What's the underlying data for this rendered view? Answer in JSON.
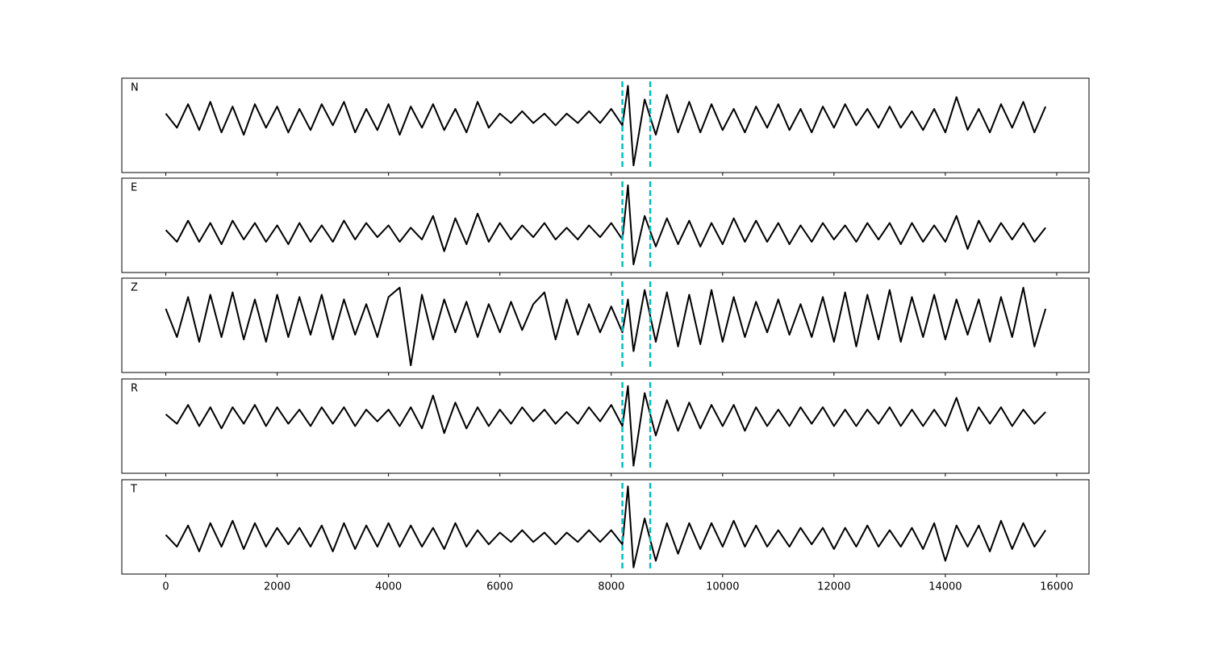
{
  "chart_data": [
    {
      "type": "line",
      "label": "N",
      "color": "#000000",
      "vlines": [
        8200,
        8700
      ],
      "vline_color": "#00bfbf",
      "xlim": [
        -790,
        16580
      ],
      "ylim": [
        -1.15,
        0.85
      ],
      "x": [
        0,
        200,
        400,
        600,
        800,
        1000,
        1200,
        1400,
        1600,
        1800,
        2000,
        2200,
        2400,
        2600,
        2800,
        3000,
        3200,
        3400,
        3600,
        3800,
        4000,
        4200,
        4400,
        4600,
        4800,
        5000,
        5200,
        5400,
        5600,
        5800,
        6000,
        6200,
        6400,
        6600,
        6800,
        7000,
        7200,
        7400,
        7600,
        7800,
        8000,
        8200,
        8300,
        8400,
        8600,
        8800,
        9000,
        9200,
        9400,
        9600,
        9800,
        10000,
        10200,
        10400,
        10600,
        10800,
        11000,
        11200,
        11400,
        11600,
        11800,
        12000,
        12200,
        12400,
        12600,
        12800,
        13000,
        13200,
        13400,
        13600,
        13800,
        14000,
        14200,
        14400,
        14600,
        14800,
        15000,
        15200,
        15400,
        15600,
        15800
      ],
      "values": [
        0.1,
        -0.2,
        0.3,
        -0.25,
        0.35,
        -0.3,
        0.25,
        -0.35,
        0.3,
        -0.2,
        0.25,
        -0.3,
        0.2,
        -0.25,
        0.3,
        -0.15,
        0.35,
        -0.3,
        0.2,
        -0.25,
        0.3,
        -0.35,
        0.25,
        -0.2,
        0.3,
        -0.25,
        0.2,
        -0.3,
        0.35,
        -0.2,
        0.1,
        -0.1,
        0.15,
        -0.1,
        0.1,
        -0.15,
        0.1,
        -0.1,
        0.15,
        -0.1,
        0.2,
        -0.15,
        0.69,
        -1.0,
        0.4,
        -0.35,
        0.5,
        -0.3,
        0.35,
        -0.3,
        0.3,
        -0.25,
        0.2,
        -0.3,
        0.25,
        -0.2,
        0.3,
        -0.25,
        0.2,
        -0.3,
        0.25,
        -0.2,
        0.3,
        -0.15,
        0.2,
        -0.2,
        0.25,
        -0.2,
        0.15,
        -0.25,
        0.2,
        -0.3,
        0.45,
        -0.25,
        0.2,
        -0.3,
        0.3,
        -0.2,
        0.35,
        -0.3,
        0.25
      ]
    },
    {
      "type": "line",
      "label": "E",
      "color": "#000000",
      "vlines": [
        8200,
        8700
      ],
      "vline_color": "#00bfbf",
      "xlim": [
        -790,
        16580
      ],
      "ylim": [
        -0.85,
        1.15
      ],
      "x": [
        0,
        200,
        400,
        600,
        800,
        1000,
        1200,
        1400,
        1600,
        1800,
        2000,
        2200,
        2400,
        2600,
        2800,
        3000,
        3200,
        3400,
        3600,
        3800,
        4000,
        4200,
        4400,
        4600,
        4800,
        5000,
        5200,
        5400,
        5600,
        5800,
        6000,
        6200,
        6400,
        6600,
        6800,
        7000,
        7200,
        7400,
        7600,
        7800,
        8000,
        8200,
        8300,
        8400,
        8600,
        8800,
        9000,
        9200,
        9400,
        9600,
        9800,
        10000,
        10200,
        10400,
        10600,
        10800,
        11000,
        11200,
        11400,
        11600,
        11800,
        12000,
        12200,
        12400,
        12600,
        12800,
        13000,
        13200,
        13400,
        13600,
        13800,
        14000,
        14200,
        14400,
        14600,
        14800,
        15000,
        15200,
        15400,
        15600,
        15800
      ],
      "values": [
        0.05,
        -0.2,
        0.25,
        -0.2,
        0.2,
        -0.25,
        0.25,
        -0.15,
        0.2,
        -0.2,
        0.15,
        -0.25,
        0.2,
        -0.2,
        0.15,
        -0.2,
        0.25,
        -0.15,
        0.2,
        -0.1,
        0.15,
        -0.2,
        0.1,
        -0.15,
        0.35,
        -0.4,
        0.3,
        -0.25,
        0.4,
        -0.2,
        0.2,
        -0.15,
        0.15,
        -0.1,
        0.2,
        -0.15,
        0.1,
        -0.15,
        0.15,
        -0.1,
        0.2,
        -0.15,
        1.0,
        -0.68,
        0.35,
        -0.3,
        0.3,
        -0.25,
        0.25,
        -0.3,
        0.2,
        -0.25,
        0.3,
        -0.2,
        0.25,
        -0.2,
        0.2,
        -0.25,
        0.15,
        -0.2,
        0.2,
        -0.15,
        0.15,
        -0.2,
        0.2,
        -0.15,
        0.2,
        -0.25,
        0.2,
        -0.2,
        0.15,
        -0.2,
        0.35,
        -0.35,
        0.25,
        -0.2,
        0.2,
        -0.15,
        0.2,
        -0.2,
        0.1
      ]
    },
    {
      "type": "line",
      "label": "Z",
      "color": "#000000",
      "vlines": [
        8200,
        8700
      ],
      "vline_color": "#00bfbf",
      "xlim": [
        -790,
        16580
      ],
      "ylim": [
        -1.15,
        0.85
      ],
      "x": [
        0,
        200,
        400,
        600,
        800,
        1000,
        1200,
        1400,
        1600,
        1800,
        2000,
        2200,
        2400,
        2600,
        2800,
        3000,
        3200,
        3400,
        3600,
        3800,
        4000,
        4200,
        4400,
        4600,
        4800,
        5000,
        5200,
        5400,
        5600,
        5800,
        6000,
        6200,
        6400,
        6600,
        6800,
        7000,
        7200,
        7400,
        7600,
        7800,
        8000,
        8200,
        8300,
        8400,
        8600,
        8800,
        9000,
        9200,
        9400,
        9600,
        9800,
        10000,
        10200,
        10400,
        10600,
        10800,
        11000,
        11200,
        11400,
        11600,
        11800,
        12000,
        12200,
        12400,
        12600,
        12800,
        13000,
        13200,
        13400,
        13600,
        13800,
        14000,
        14200,
        14400,
        14600,
        14800,
        15000,
        15200,
        15400,
        15600,
        15800
      ],
      "values": [
        0.2,
        -0.4,
        0.45,
        -0.5,
        0.5,
        -0.4,
        0.55,
        -0.45,
        0.4,
        -0.5,
        0.5,
        -0.4,
        0.45,
        -0.35,
        0.5,
        -0.45,
        0.4,
        -0.35,
        0.3,
        -0.4,
        0.45,
        0.65,
        -1.0,
        0.5,
        -0.45,
        0.4,
        -0.3,
        0.35,
        -0.4,
        0.3,
        -0.3,
        0.35,
        -0.25,
        0.3,
        0.55,
        -0.45,
        0.4,
        -0.35,
        0.3,
        -0.3,
        0.25,
        -0.3,
        0.4,
        -0.7,
        0.6,
        -0.5,
        0.55,
        -0.6,
        0.5,
        -0.55,
        0.6,
        -0.5,
        0.45,
        -0.4,
        0.35,
        -0.3,
        0.4,
        -0.35,
        0.3,
        -0.4,
        0.45,
        -0.5,
        0.55,
        -0.6,
        0.5,
        -0.45,
        0.6,
        -0.5,
        0.45,
        -0.4,
        0.5,
        -0.45,
        0.4,
        -0.35,
        0.4,
        -0.5,
        0.45,
        -0.4,
        0.65,
        -0.6,
        0.2
      ]
    },
    {
      "type": "line",
      "label": "R",
      "color": "#000000",
      "vlines": [
        8200,
        8700
      ],
      "vline_color": "#00bfbf",
      "xlim": [
        -790,
        16580
      ],
      "ylim": [
        -1.2,
        0.8
      ],
      "x": [
        0,
        200,
        400,
        600,
        800,
        1000,
        1200,
        1400,
        1600,
        1800,
        2000,
        2200,
        2400,
        2600,
        2800,
        3000,
        3200,
        3400,
        3600,
        3800,
        4000,
        4200,
        4400,
        4600,
        4800,
        5000,
        5200,
        5400,
        5600,
        5800,
        6000,
        6200,
        6400,
        6600,
        6800,
        7000,
        7200,
        7400,
        7600,
        7800,
        8000,
        8200,
        8300,
        8400,
        8600,
        8800,
        9000,
        9200,
        9400,
        9600,
        9800,
        10000,
        10200,
        10400,
        10600,
        10800,
        11000,
        11200,
        11400,
        11600,
        11800,
        12000,
        12200,
        12400,
        12600,
        12800,
        13000,
        13200,
        13400,
        13600,
        13800,
        14000,
        14200,
        14400,
        14600,
        14800,
        15000,
        15200,
        15400,
        15600,
        15800
      ],
      "values": [
        0.05,
        -0.15,
        0.25,
        -0.2,
        0.2,
        -0.25,
        0.2,
        -0.15,
        0.25,
        -0.2,
        0.2,
        -0.15,
        0.15,
        -0.2,
        0.2,
        -0.15,
        0.2,
        -0.2,
        0.15,
        -0.1,
        0.15,
        -0.2,
        0.2,
        -0.25,
        0.45,
        -0.35,
        0.3,
        -0.25,
        0.2,
        -0.2,
        0.15,
        -0.15,
        0.2,
        -0.1,
        0.15,
        -0.15,
        0.1,
        -0.15,
        0.2,
        -0.1,
        0.25,
        -0.2,
        0.65,
        -1.04,
        0.5,
        -0.4,
        0.35,
        -0.3,
        0.3,
        -0.25,
        0.25,
        -0.2,
        0.25,
        -0.3,
        0.2,
        -0.2,
        0.15,
        -0.2,
        0.2,
        -0.15,
        0.2,
        -0.2,
        0.15,
        -0.2,
        0.15,
        -0.15,
        0.2,
        -0.2,
        0.15,
        -0.2,
        0.15,
        -0.2,
        0.4,
        -0.3,
        0.2,
        -0.15,
        0.2,
        -0.2,
        0.15,
        -0.15,
        0.1
      ]
    },
    {
      "type": "line",
      "label": "T",
      "color": "#000000",
      "vlines": [
        8200,
        8700
      ],
      "vline_color": "#00bfbf",
      "xlim": [
        -790,
        16580
      ],
      "ylim": [
        -0.78,
        1.22
      ],
      "xticks": [
        0,
        2000,
        4000,
        6000,
        8000,
        10000,
        12000,
        14000,
        16000
      ],
      "x": [
        0,
        200,
        400,
        600,
        800,
        1000,
        1200,
        1400,
        1600,
        1800,
        2000,
        2200,
        2400,
        2600,
        2800,
        3000,
        3200,
        3400,
        3600,
        3800,
        4000,
        4200,
        4400,
        4600,
        4800,
        5000,
        5200,
        5400,
        5600,
        5800,
        6000,
        6200,
        6400,
        6600,
        6800,
        7000,
        7200,
        7400,
        7600,
        7800,
        8000,
        8200,
        8300,
        8400,
        8600,
        8800,
        9000,
        9200,
        9400,
        9600,
        9800,
        10000,
        10200,
        10400,
        10600,
        10800,
        11000,
        11200,
        11400,
        11600,
        11800,
        12000,
        12200,
        12400,
        12600,
        12800,
        13000,
        13200,
        13400,
        13600,
        13800,
        14000,
        14200,
        14400,
        14600,
        14800,
        15000,
        15200,
        15400,
        15600,
        15800
      ],
      "values": [
        0.05,
        -0.2,
        0.25,
        -0.3,
        0.3,
        -0.2,
        0.35,
        -0.25,
        0.3,
        -0.2,
        0.2,
        -0.15,
        0.2,
        -0.2,
        0.25,
        -0.3,
        0.3,
        -0.25,
        0.25,
        -0.2,
        0.3,
        -0.2,
        0.25,
        -0.2,
        0.2,
        -0.25,
        0.3,
        -0.2,
        0.15,
        -0.15,
        0.1,
        -0.1,
        0.15,
        -0.1,
        0.1,
        -0.15,
        0.1,
        -0.1,
        0.15,
        -0.1,
        0.15,
        -0.15,
        1.08,
        -0.64,
        0.4,
        -0.5,
        0.3,
        -0.35,
        0.3,
        -0.25,
        0.3,
        -0.2,
        0.35,
        -0.2,
        0.25,
        -0.2,
        0.15,
        -0.2,
        0.2,
        -0.15,
        0.2,
        -0.25,
        0.2,
        -0.2,
        0.25,
        -0.2,
        0.15,
        -0.2,
        0.2,
        -0.25,
        0.3,
        -0.5,
        0.25,
        -0.2,
        0.25,
        -0.3,
        0.35,
        -0.25,
        0.3,
        -0.2,
        0.15
      ]
    }
  ]
}
